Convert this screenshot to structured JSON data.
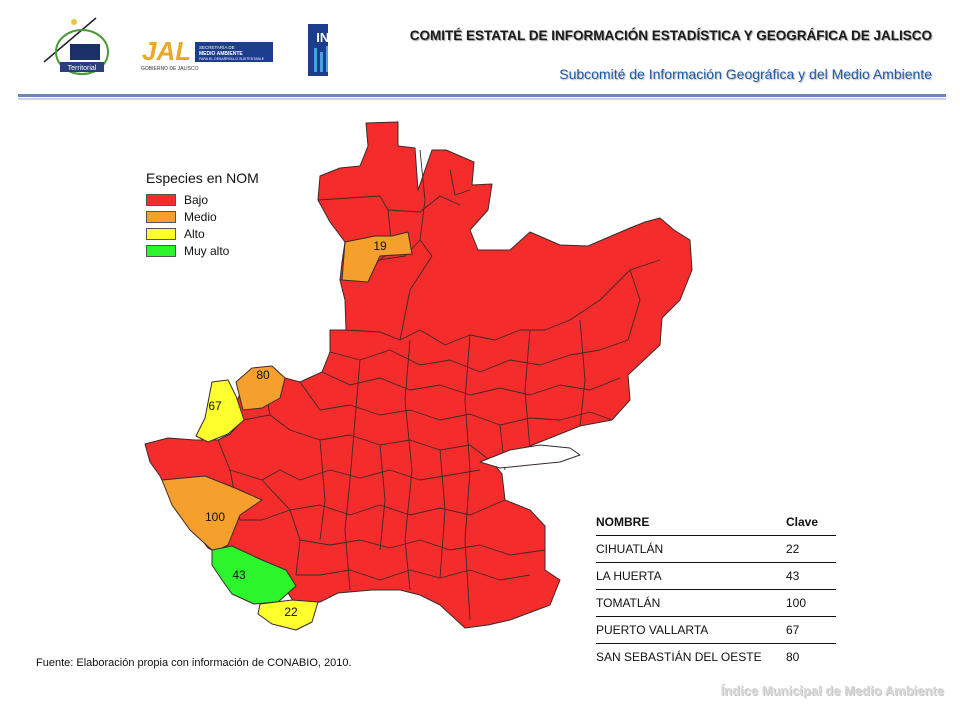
{
  "header": {
    "title": "COMITÉ ESTATAL DE INFORMACIÓN ESTADÍSTICA Y GEOGRÁFICA DE JALISCO",
    "subtitle": "Subcomité de Información Geográfica y del Medio Ambiente"
  },
  "logos": {
    "territorial": "Territorial",
    "jal": "JAL",
    "jal_sub": "GOBIERNO DE JALISCO",
    "semades_line1": "SECRETARÍA DE",
    "semades_line2": "MEDIO AMBIENTE",
    "semades_line3": "PARA EL DESARROLLO SUSTENTABLE",
    "inegi": "INEGI"
  },
  "legend": {
    "title": "Especies en NOM",
    "items": [
      {
        "label": "Bajo",
        "color": "#f52c2c"
      },
      {
        "label": "Medio",
        "color": "#f5a02c"
      },
      {
        "label": "Alto",
        "color": "#ffff2e"
      },
      {
        "label": "Muy alto",
        "color": "#2cf52c"
      }
    ]
  },
  "map_labels": {
    "m19": "19",
    "m80": "80",
    "m67": "67",
    "m100": "100",
    "m43": "43",
    "m22": "22"
  },
  "table": {
    "headers": [
      "NOMBRE",
      "Clave"
    ],
    "rows": [
      [
        "CIHUATLÁN",
        "22"
      ],
      [
        "LA HUERTA",
        "43"
      ],
      [
        "TOMATLÁN",
        "100"
      ],
      [
        "PUERTO VALLARTA",
        "67"
      ],
      [
        "SAN SEBASTIÁN DEL OESTE",
        "80"
      ]
    ]
  },
  "source": "Fuente: Elaboración propia con información de CONABIO, 2010.",
  "footer": "Índice Municipal de Medio Ambiente"
}
